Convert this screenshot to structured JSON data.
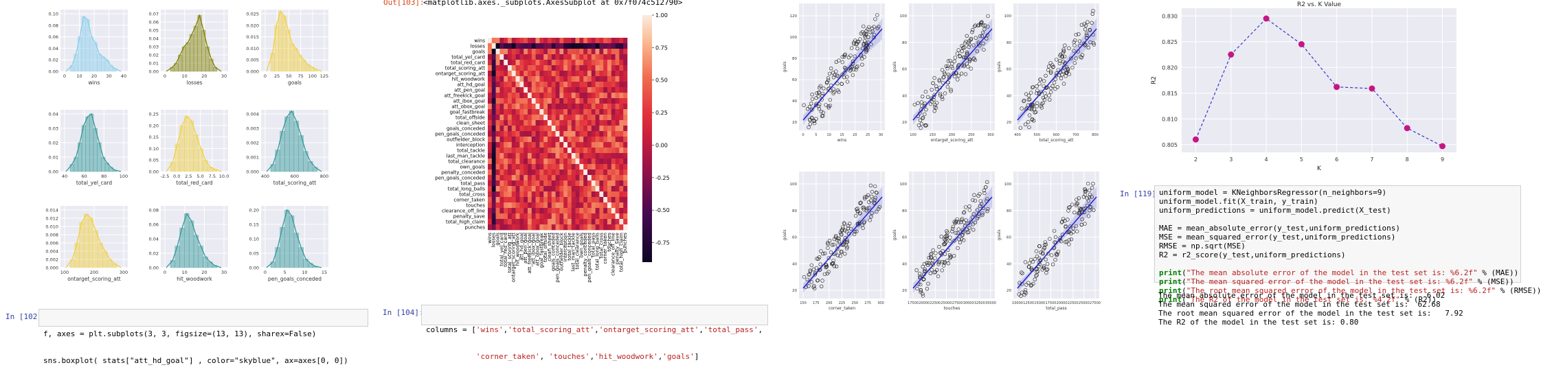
{
  "cell102": {
    "prompt": "In [102]:",
    "lines": [
      "f, axes = plt.subplots(3, 3, figsize=(13, 13), sharex=False)",
      "sns.boxplot( stats[\"att_hd_goal\"] , color=\"skyblue\", ax=axes[0, 0])"
    ]
  },
  "cell103": {
    "prompt": "Out[103]:",
    "text": "<matplotlib.axes._subplots.AxesSubplot at 0x7f074c512790>"
  },
  "cell104": {
    "prompt": "In [104]:",
    "lines": [
      "columns = ['wins','total_scoring_att','ontarget_scoring_att','total_pass',",
      "           'corner_taken', 'touches','hit_woodwork','goals']"
    ]
  },
  "cell119": {
    "prompt": "In [119]:",
    "lines": [
      "uniform_model = KNeighborsRegressor(n_neighbors=9)",
      "uniform_model.fit(X_train, y_train)",
      "uniform_predictions = uniform_model.predict(X_test)",
      "",
      "MAE = mean_absolute_error(y_test,uniform_predictions)",
      "MSE = mean_squared_error(y_test,uniform_predictions)",
      "RMSE = np.sqrt(MSE)",
      "R2 = r2_score(y_test,uniform_predictions)",
      "",
      "print(\"The mean absolute error of the model in the test set is: %6.2f\" % (MAE))",
      "print(\"The mean squared error of the model in the test set is: %6.2f\" % (MSE))",
      "print(\"The root mean squared error of the model in the test set is: %6.2f\" % (RMSE))",
      "print(\"The R2 of the model in the test set is: %4.2f\" % (R2))"
    ],
    "output": [
      "The mean absolute error of the model in the test set is:   6.02",
      "The mean squared error of the model in the test set is:  62.68",
      "The root mean squared error of the model in the test set is:   7.92",
      "The R2 of the model in the test set is: 0.80"
    ]
  },
  "colors": {
    "skyblue": "#87ceeb",
    "olive": "#808000",
    "gold": "#f0d140",
    "teal": "#339999",
    "prompt": "#303f9f",
    "out": "#d84315",
    "knn": "#c71585"
  },
  "chart_data": [
    {
      "type": "histogram-grid",
      "panels": [
        {
          "xlabel": "wins",
          "color": "skyblue",
          "xticks": [
            "0",
            "10",
            "20",
            "30",
            "40"
          ],
          "yticks": [
            "0.00",
            "0.02",
            "0.04",
            "0.06",
            "0.08",
            "0.10"
          ],
          "bars": [
            0.01,
            0.03,
            0.06,
            0.095,
            0.09,
            0.06,
            0.05,
            0.03,
            0.025,
            0.02,
            0.01,
            0.005
          ]
        },
        {
          "xlabel": "losses",
          "color": "olive",
          "xticks": [
            "0",
            "10",
            "20",
            "30"
          ],
          "yticks": [
            "0.00",
            "0.01",
            "0.02",
            "0.03",
            "0.04",
            "0.05",
            "0.06",
            "0.07"
          ],
          "bars": [
            0.005,
            0.01,
            0.02,
            0.03,
            0.035,
            0.045,
            0.055,
            0.068,
            0.05,
            0.03,
            0.015,
            0.005
          ]
        },
        {
          "xlabel": "goals",
          "color": "gold",
          "xticks": [
            "0",
            "25",
            "50",
            "75",
            "100",
            "125"
          ],
          "yticks": [
            "0.000",
            "0.005",
            "0.010",
            "0.015",
            "0.020",
            "0.025"
          ],
          "bars": [
            0.008,
            0.02,
            0.026,
            0.024,
            0.018,
            0.012,
            0.01,
            0.007,
            0.005,
            0.003,
            0.002,
            0.001
          ]
        },
        {
          "xlabel": "total_yel_card",
          "color": "teal",
          "xticks": [
            "40",
            "60",
            "80",
            "100"
          ],
          "yticks": [
            "0.00",
            "0.01",
            "0.02",
            "0.03",
            "0.04"
          ],
          "bars": [
            0.005,
            0.01,
            0.02,
            0.032,
            0.038,
            0.04,
            0.03,
            0.02,
            0.01,
            0.006,
            0.003,
            0.001
          ]
        },
        {
          "xlabel": "total_red_card",
          "color": "gold",
          "xticks": [
            "-2.5",
            "0.0",
            "2.5",
            "5.0",
            "7.5",
            "10.0"
          ],
          "yticks": [
            "0.00",
            "0.05",
            "0.10",
            "0.15",
            "0.20",
            "0.25"
          ],
          "bars": [
            0.04,
            0.12,
            0.2,
            0.24,
            0.22,
            0.16,
            0.1,
            0.05,
            0.02,
            0.01
          ]
        },
        {
          "xlabel": "total_scoring_att",
          "color": "teal",
          "xticks": [
            "400",
            "600",
            "800"
          ],
          "yticks": [
            "0.000",
            "0.001",
            "0.002",
            "0.003",
            "0.004"
          ],
          "bars": [
            0.0005,
            0.0015,
            0.0028,
            0.0038,
            0.0042,
            0.0035,
            0.0025,
            0.0014,
            0.0007,
            0.0003
          ]
        },
        {
          "xlabel": "ontarget_scoring_att",
          "color": "gold",
          "xticks": [
            "100",
            "200",
            "300"
          ],
          "yticks": [
            "0.000",
            "0.002",
            "0.004",
            "0.006",
            "0.008",
            "0.010",
            "0.012",
            "0.014"
          ],
          "bars": [
            0.002,
            0.006,
            0.011,
            0.013,
            0.012,
            0.009,
            0.006,
            0.004,
            0.002,
            0.001
          ]
        },
        {
          "xlabel": "hit_woodwork",
          "color": "teal",
          "xticks": [
            "0",
            "10",
            "20",
            "30"
          ],
          "yticks": [
            "0.00",
            "0.02",
            "0.04",
            "0.06",
            "0.08"
          ],
          "bars": [
            0.01,
            0.03,
            0.055,
            0.075,
            0.065,
            0.045,
            0.03,
            0.015,
            0.008,
            0.003
          ]
        },
        {
          "xlabel": "pen_goals_conceded",
          "color": "teal",
          "xticks": [
            "0",
            "5",
            "10",
            "15"
          ],
          "yticks": [
            "0.00",
            "0.05",
            "0.10",
            "0.15",
            "0.20"
          ],
          "bars": [
            0.02,
            0.07,
            0.14,
            0.2,
            0.18,
            0.12,
            0.07,
            0.03,
            0.015,
            0.005
          ]
        }
      ]
    },
    {
      "type": "heatmap",
      "labels": [
        "wins",
        "losses",
        "goals",
        "total_yel_card",
        "total_red_card",
        "total_scoring_att",
        "ontarget_scoring_att",
        "hit_woodwork",
        "att_hd_goal",
        "att_pen_goal",
        "att_freekick_goal",
        "att_ibox_goal",
        "att_obox_goal",
        "goal_fastbreak",
        "total_offside",
        "clean_sheet",
        "goals_conceded",
        "pen_goals_conceded",
        "outfielder_block",
        "interception",
        "total_tackle",
        "last_man_tackle",
        "total_clearance",
        "own_goals",
        "penalty_conceded",
        "pen_goals_conceded",
        "total_pass",
        "total_long_balls",
        "total_cross",
        "corner_taken",
        "touches",
        "clearance_off_line",
        "penalty_save",
        "total_high_claim",
        "punches"
      ],
      "colorbar_ticks": [
        "1.00",
        "0.75",
        "0.50",
        "0.25",
        "0.00",
        "-0.25",
        "-0.50",
        "-0.75"
      ],
      "vmin": -0.9,
      "vmax": 1.0
    },
    {
      "type": "scatter-grid",
      "panels": [
        {
          "xlabel": "wins",
          "ylabel": "goals",
          "xticks": [
            "0",
            "5",
            "10",
            "15",
            "20",
            "25",
            "30"
          ],
          "yticks": [
            "20",
            "40",
            "60",
            "80",
            "100",
            "120"
          ]
        },
        {
          "xlabel": "ontarget_scoring_att",
          "ylabel": "goals",
          "xticks": [
            "100",
            "150",
            "200",
            "250",
            "300"
          ],
          "yticks": [
            "20",
            "40",
            "60",
            "80",
            "100"
          ]
        },
        {
          "xlabel": "total_scoring_att",
          "ylabel": "goals",
          "xticks": [
            "400",
            "500",
            "600",
            "700",
            "800"
          ],
          "yticks": [
            "20",
            "40",
            "60",
            "80",
            "100"
          ]
        },
        {
          "xlabel": "corner_taken",
          "ylabel": "goals",
          "xticks": [
            "150",
            "175",
            "200",
            "225",
            "250",
            "275",
            "300"
          ],
          "yticks": [
            "20",
            "40",
            "60",
            "80",
            "100"
          ]
        },
        {
          "xlabel": "touches",
          "ylabel": "goals",
          "xticks": [
            "17500",
            "20000",
            "22500",
            "25000",
            "27500",
            "30000",
            "32500",
            "35000"
          ],
          "yticks": [
            "20",
            "40",
            "60",
            "80",
            "100"
          ]
        },
        {
          "xlabel": "total_pass",
          "ylabel": "goals",
          "xticks": [
            "10000",
            "12500",
            "15000",
            "17500",
            "20000",
            "22500",
            "25000",
            "27500"
          ],
          "yticks": [
            "20",
            "40",
            "60",
            "80",
            "100"
          ]
        }
      ]
    },
    {
      "type": "line",
      "title": "R2 vs. K Value",
      "xlabel": "K",
      "ylabel": "R2",
      "x": [
        2,
        3,
        4,
        5,
        6,
        7,
        8,
        9
      ],
      "y": [
        0.806,
        0.8225,
        0.8295,
        0.8245,
        0.8162,
        0.8159,
        0.8082,
        0.8047
      ],
      "xlim": [
        1.6,
        9.4
      ],
      "ylim": [
        0.8035,
        0.8315
      ],
      "yticks": [
        "0.805",
        "0.810",
        "0.815",
        "0.820",
        "0.825",
        "0.830"
      ],
      "xticks": [
        "2",
        "3",
        "4",
        "5",
        "6",
        "7",
        "8",
        "9"
      ]
    }
  ]
}
